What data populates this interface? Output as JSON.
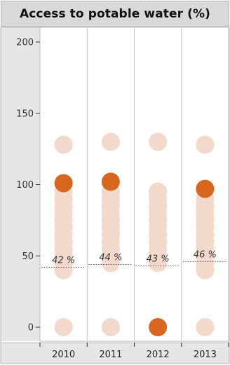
{
  "title": "Access to potable water (%)",
  "colors": {
    "highlight": "#d9661f",
    "faded": "#f2d9cc",
    "panel_bg": "#e6e6e6",
    "grid": "#c8c8c8",
    "avg_line": "#555555"
  },
  "chart_data": {
    "type": "scatter",
    "title": "Access to potable water (%)",
    "xlabel": "",
    "ylabel": "",
    "ylim": [
      0,
      200
    ],
    "y_ticks": [
      0,
      50,
      100,
      150,
      200
    ],
    "y_tick_labels": [
      "0",
      "50",
      "100",
      "150",
      "200"
    ],
    "categories": [
      "2010",
      "2011",
      "2012",
      "2013"
    ],
    "series": [
      {
        "values": [
          [
            0,
            40,
            45,
            50,
            55,
            60,
            65,
            70,
            75,
            80,
            85,
            90,
            95,
            128
          ],
          [
            0,
            45,
            50,
            55,
            60,
            65,
            70,
            75,
            80,
            85,
            90,
            95,
            130
          ],
          [
            45,
            50,
            55,
            60,
            65,
            70,
            75,
            80,
            85,
            90,
            95,
            130
          ],
          [
            0,
            40,
            45,
            50,
            55,
            60,
            65,
            70,
            75,
            80,
            85,
            90,
            128
          ]
        ]
      }
    ],
    "highlighted": [
      101,
      102,
      0,
      97
    ],
    "average_labels": [
      "42 %",
      "44 %",
      "43 %",
      "46 %"
    ],
    "average_values": [
      42,
      44,
      43,
      46
    ],
    "grid": true
  }
}
